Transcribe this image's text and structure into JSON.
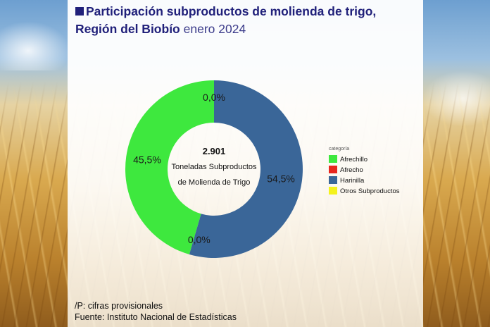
{
  "title": {
    "main": "Participación subproductos de molienda de trigo, Región del Biobío",
    "period": "enero 2024"
  },
  "chart_data": {
    "type": "pie",
    "donut": true,
    "categories": [
      "Afrechillo",
      "Afrecho",
      "Harinilla",
      "Otros Subproductos"
    ],
    "values": [
      45.5,
      0.0,
      54.5,
      0.0
    ],
    "labels": [
      "45,5%",
      "0,0%",
      "54,5%",
      "0,0%"
    ],
    "colors": [
      "#3ee83e",
      "#e8261e",
      "#3a6698",
      "#f4f21c"
    ],
    "center": {
      "value": "2.901",
      "line1": "Toneladas Subproductos",
      "line2": "de Molienda de Trigo"
    },
    "legend": {
      "title": "categoría",
      "placement": "right"
    }
  },
  "footer": {
    "note": "/P: cifras provisionales",
    "source": "Fuente: Instituto Nacional de Estadísticas"
  }
}
